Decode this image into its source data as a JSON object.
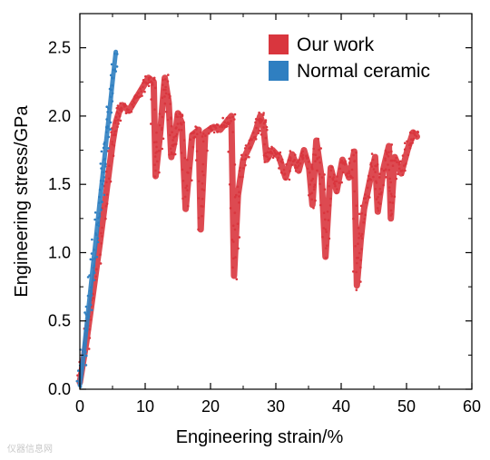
{
  "chart_data": {
    "type": "line",
    "title": "",
    "xlabel": "Engineering strain/%",
    "ylabel": "Engineering stress/GPa",
    "xlim": [
      0,
      60
    ],
    "ylim": [
      0,
      2.75
    ],
    "x_ticks": [
      "0",
      "10",
      "20",
      "30",
      "40",
      "50",
      "60"
    ],
    "y_ticks": [
      "0.0",
      "0.5",
      "1.0",
      "1.5",
      "2.0",
      "2.5"
    ],
    "grid": false,
    "legend_position": "top-right",
    "series": [
      {
        "name": "Our work",
        "color": "#d9363e",
        "x": [
          0,
          1,
          2,
          3,
          4,
          5,
          5.5,
          6,
          6.5,
          7.5,
          8.5,
          9.5,
          10.5,
          11.3,
          11.6,
          12.3,
          13,
          13.6,
          14,
          14.5,
          15,
          15.6,
          16.2,
          17.2,
          18.2,
          18.5,
          19.2,
          20.5,
          21.5,
          22.5,
          23.2,
          23.6,
          24.2,
          25,
          26,
          27,
          27.6,
          28.1,
          28.6,
          29.5,
          30.5,
          31.5,
          32.5,
          33.5,
          34.3,
          35.1,
          35.6,
          36.2,
          37,
          37.6,
          38.4,
          39.3,
          40.2,
          41.2,
          42,
          42.4,
          43,
          43.5,
          44.5,
          45.2,
          45.6,
          46.5,
          47.3,
          47.6,
          48.2,
          49.2,
          50.2,
          51,
          51.6
        ],
        "y": [
          0.05,
          0.35,
          0.7,
          1.05,
          1.42,
          1.8,
          1.95,
          2.03,
          2.08,
          2.04,
          2.12,
          2.2,
          2.28,
          2.25,
          1.56,
          1.88,
          2.28,
          2.1,
          1.7,
          1.82,
          2.02,
          1.95,
          1.32,
          1.86,
          1.9,
          1.17,
          1.88,
          1.92,
          1.9,
          1.96,
          2.0,
          0.83,
          1.42,
          1.68,
          1.78,
          1.9,
          2.0,
          1.93,
          1.68,
          1.75,
          1.7,
          1.55,
          1.72,
          1.6,
          1.75,
          1.62,
          1.35,
          1.82,
          1.55,
          0.97,
          1.62,
          1.45,
          1.68,
          1.55,
          1.74,
          0.76,
          1.1,
          1.32,
          1.55,
          1.7,
          1.3,
          1.62,
          1.78,
          1.25,
          1.7,
          1.58,
          1.76,
          1.88,
          1.85
        ]
      },
      {
        "name": "Normal ceramic",
        "color": "#2f7fc1",
        "x": [
          0,
          0.5,
          1,
          1.5,
          2,
          2.5,
          3,
          3.5,
          4,
          4.5,
          5,
          5.5
        ],
        "y": [
          0.03,
          0.22,
          0.45,
          0.67,
          0.9,
          1.12,
          1.35,
          1.57,
          1.8,
          2.02,
          2.25,
          2.47
        ]
      }
    ]
  },
  "watermark": "仪器信息网"
}
